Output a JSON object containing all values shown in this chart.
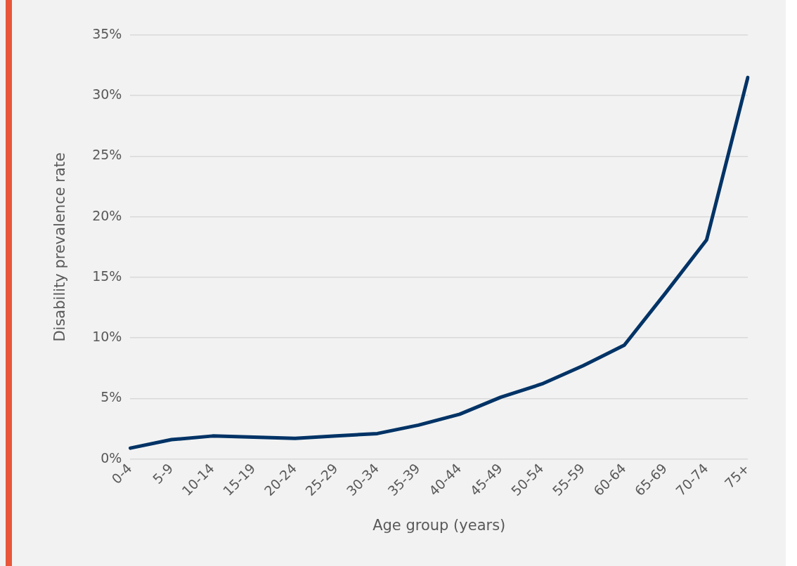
{
  "chart_data": {
    "type": "line",
    "xlabel": "Age group (years)",
    "ylabel": "Disability prevalence rate",
    "categories": [
      "0-4",
      "5-9",
      "10-14",
      "15-19",
      "20-24",
      "25-29",
      "30-34",
      "35-39",
      "40-44",
      "45-49",
      "50-54",
      "55-59",
      "60-64",
      "65-69",
      "70-74",
      "75+"
    ],
    "values": [
      0.9,
      1.6,
      1.9,
      1.8,
      1.7,
      1.9,
      2.1,
      2.8,
      3.7,
      5.1,
      6.2,
      7.7,
      9.4,
      13.7,
      18.1,
      31.5
    ],
    "color": "#003366",
    "ylim": [
      0,
      35
    ],
    "yticks": [
      {
        "value": 0,
        "label": "0%"
      },
      {
        "value": 5,
        "label": "5%"
      },
      {
        "value": 10,
        "label": "10%"
      },
      {
        "value": 15,
        "label": "15%"
      },
      {
        "value": 20,
        "label": "20%"
      },
      {
        "value": 25,
        "label": "25%"
      },
      {
        "value": 30,
        "label": "30%"
      },
      {
        "value": 35,
        "label": "35%"
      }
    ],
    "grid": "y",
    "legend": false,
    "marker": "none",
    "line_style": "solid"
  }
}
